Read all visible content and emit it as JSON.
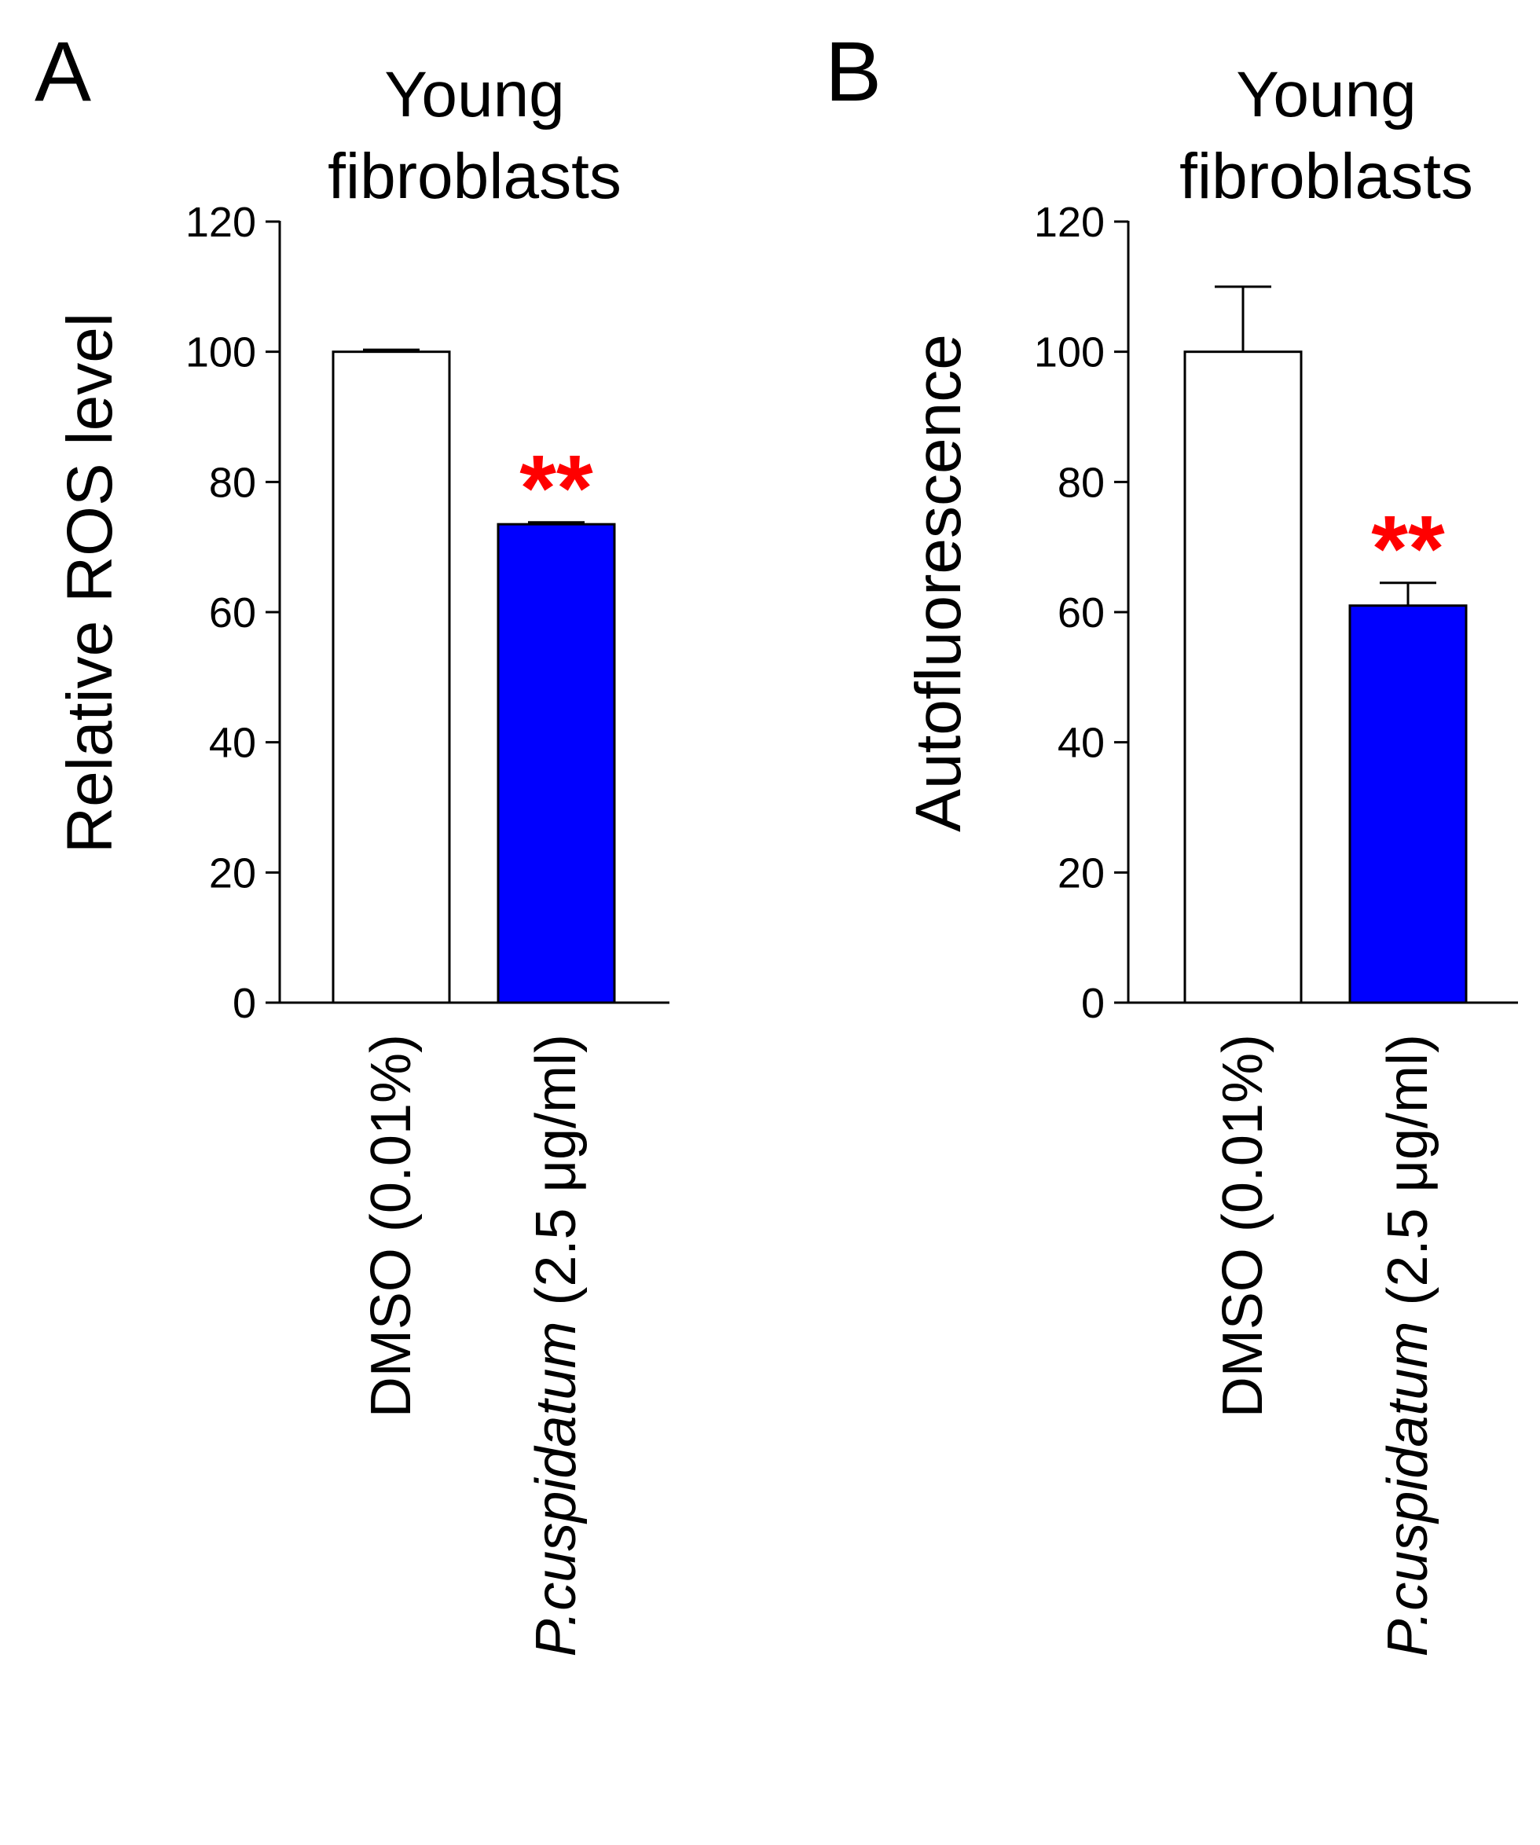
{
  "colors": {
    "bar_control": "#ffffff",
    "bar_treated": "#0000ff",
    "significance": "#ff0000",
    "axis": "#000000"
  },
  "chart_data": [
    {
      "type": "bar",
      "panel_letter": "A",
      "title_lines": [
        "Young",
        "fibroblasts"
      ],
      "ylabel": "Relative ROS level",
      "ylim": [
        0,
        120
      ],
      "yticks": [
        0,
        20,
        40,
        60,
        80,
        100,
        120
      ],
      "categories": [
        {
          "parts": [
            {
              "text": "DMSO (0.01%)",
              "italic": false
            }
          ]
        },
        {
          "parts": [
            {
              "text": "P.cuspidatum",
              "italic": true
            },
            {
              "text": " (2.5 μg/ml)",
              "italic": false
            }
          ]
        }
      ],
      "values": [
        100,
        73.5
      ],
      "errors": [
        0.3,
        0.3
      ],
      "significance": [
        "",
        "**"
      ]
    },
    {
      "type": "bar",
      "panel_letter": "B",
      "title_lines": [
        "Young",
        "fibroblasts"
      ],
      "ylabel": "Autofluorescence",
      "ylim": [
        0,
        120
      ],
      "yticks": [
        0,
        20,
        40,
        60,
        80,
        100,
        120
      ],
      "categories": [
        {
          "parts": [
            {
              "text": "DMSO (0.01%)",
              "italic": false
            }
          ]
        },
        {
          "parts": [
            {
              "text": "P.cuspidatum",
              "italic": true
            },
            {
              "text": " (2.5 μg/ml)",
              "italic": false
            }
          ]
        }
      ],
      "values": [
        100,
        61
      ],
      "errors": [
        10,
        3.5
      ],
      "significance": [
        "",
        "**"
      ]
    }
  ]
}
